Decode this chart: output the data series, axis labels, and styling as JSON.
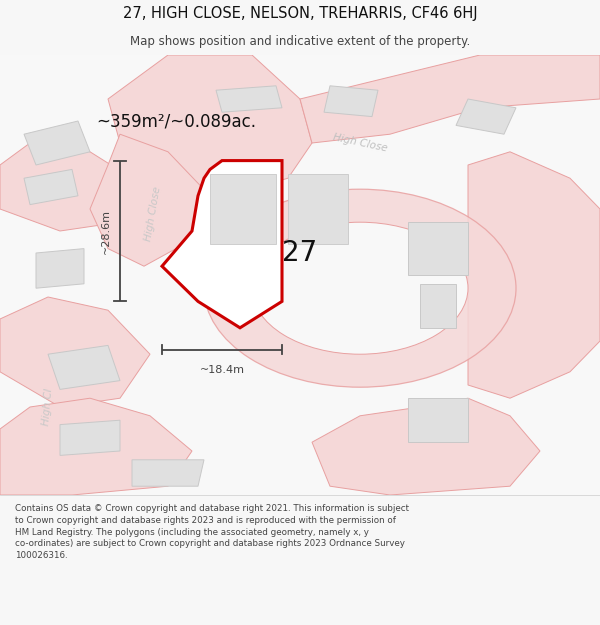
{
  "title_line1": "27, HIGH CLOSE, NELSON, TREHARRIS, CF46 6HJ",
  "title_line2": "Map shows position and indicative extent of the property.",
  "area_text": "~359m²/~0.089ac.",
  "label_27": "27",
  "dim_height": "~28.6m",
  "dim_width": "~18.4m",
  "road_label_top": "High Close",
  "road_label_mid": "High Close",
  "road_label_bot": "High Cl",
  "footer": "Contains OS data © Crown copyright and database right 2021. This information is subject to Crown copyright and database rights 2023 and is reproduced with the permission of HM Land Registry. The polygons (including the associated geometry, namely x, y co-ordinates) are subject to Crown copyright and database rights 2023 Ordnance Survey 100026316.",
  "bg_color": "#f7f7f7",
  "map_bg": "#f8f8f8",
  "road_fill": "#f5d8d8",
  "road_line": "#e8a0a0",
  "building_fill": "#e0e0e0",
  "building_line": "#c8c8c8",
  "plot_fill": "#ffffff",
  "plot_line": "#cc0000",
  "dim_color": "#444444",
  "label_color": "#cccccc",
  "text_dark": "#111111",
  "text_mid": "#444444"
}
